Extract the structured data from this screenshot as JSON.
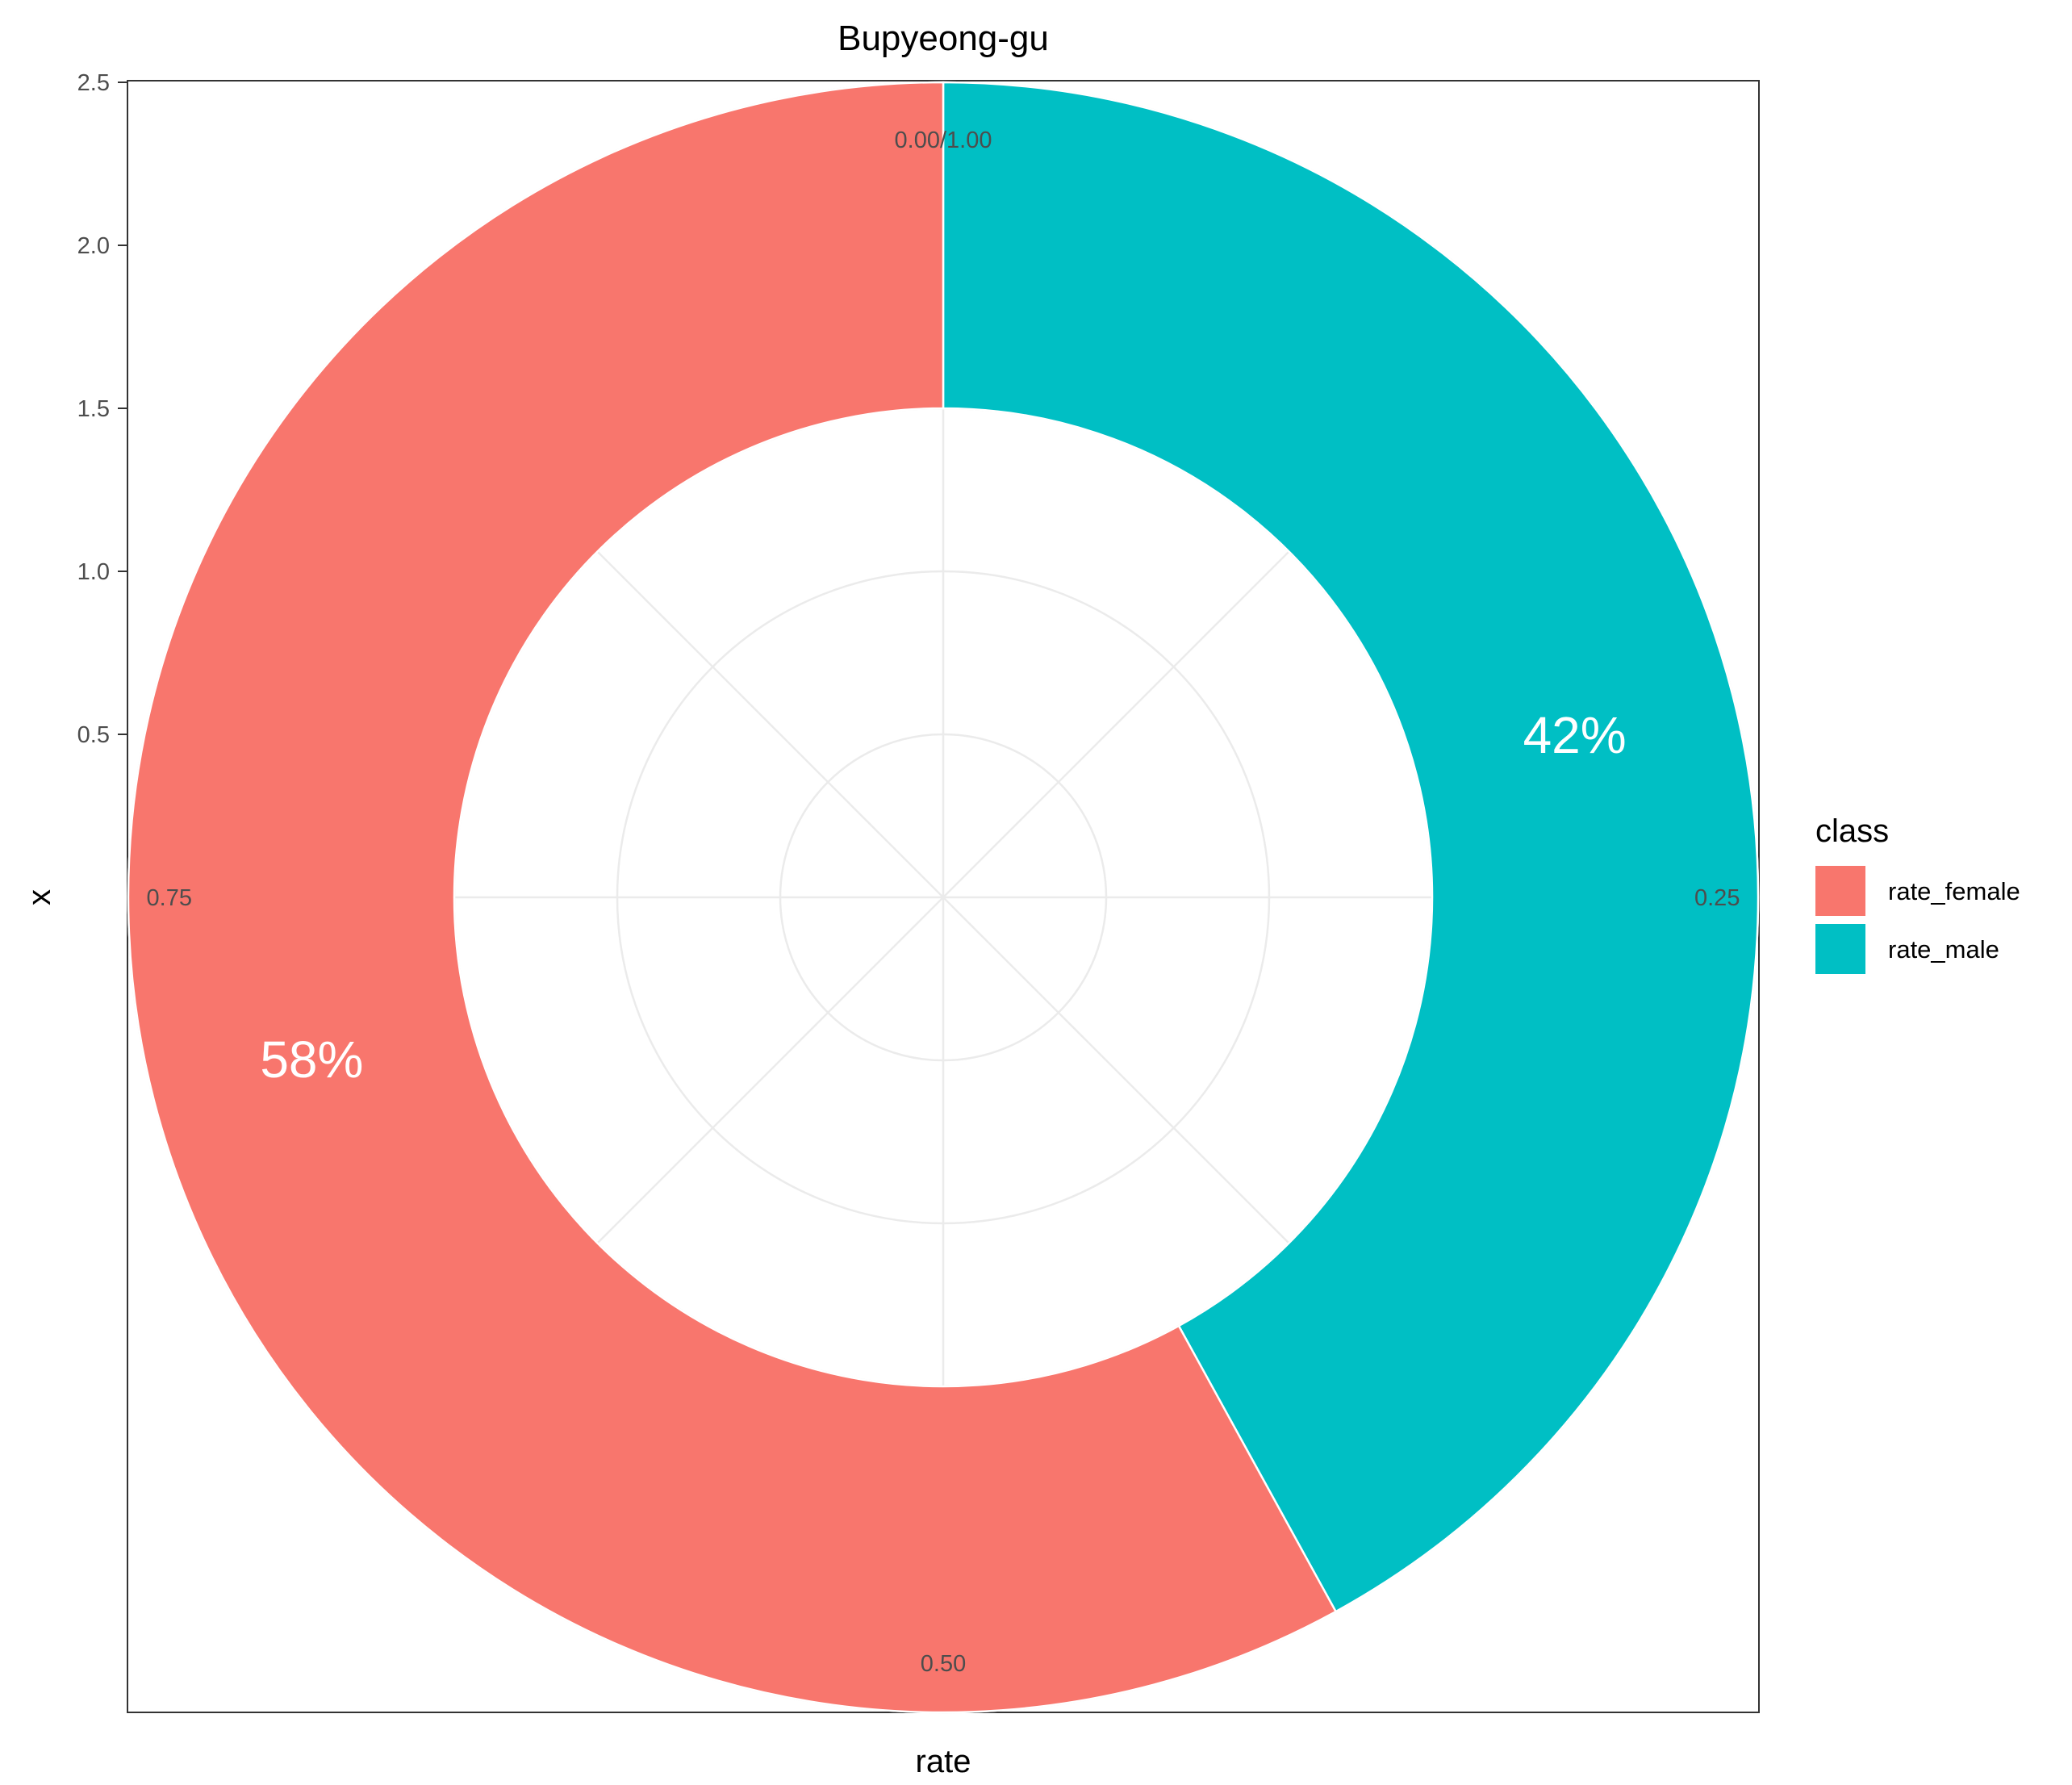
{
  "chart_data": {
    "type": "pie",
    "variant": "donut",
    "title": "Bupyeong-gu",
    "xlabel": "rate",
    "ylabel": "x",
    "radial_axis": {
      "ticks": [
        0.5,
        1.0,
        1.5,
        2.0,
        2.5
      ],
      "tick_labels": [
        "0.5",
        "1.0",
        "1.5",
        "2.0",
        "2.5"
      ],
      "range": [
        0,
        3
      ],
      "bar_inner": 1.5,
      "bar_outer": 2.5
    },
    "theta_axis": {
      "tick_labels": [
        "0.00/1.00",
        "0.25",
        "0.50",
        "0.75"
      ],
      "range": [
        0,
        1
      ],
      "direction": "clockwise",
      "start": "top"
    },
    "slices": [
      {
        "name": "rate_male",
        "value": 0.42,
        "label": "42%",
        "color": "#00BFC4"
      },
      {
        "name": "rate_female",
        "value": 0.58,
        "label": "58%",
        "color": "#F8766D"
      }
    ],
    "legend": {
      "title": "class",
      "position": "right",
      "entries": [
        {
          "label": "rate_female",
          "color": "#F8766D"
        },
        {
          "label": "rate_male",
          "color": "#00BFC4"
        }
      ]
    },
    "grid": true
  }
}
